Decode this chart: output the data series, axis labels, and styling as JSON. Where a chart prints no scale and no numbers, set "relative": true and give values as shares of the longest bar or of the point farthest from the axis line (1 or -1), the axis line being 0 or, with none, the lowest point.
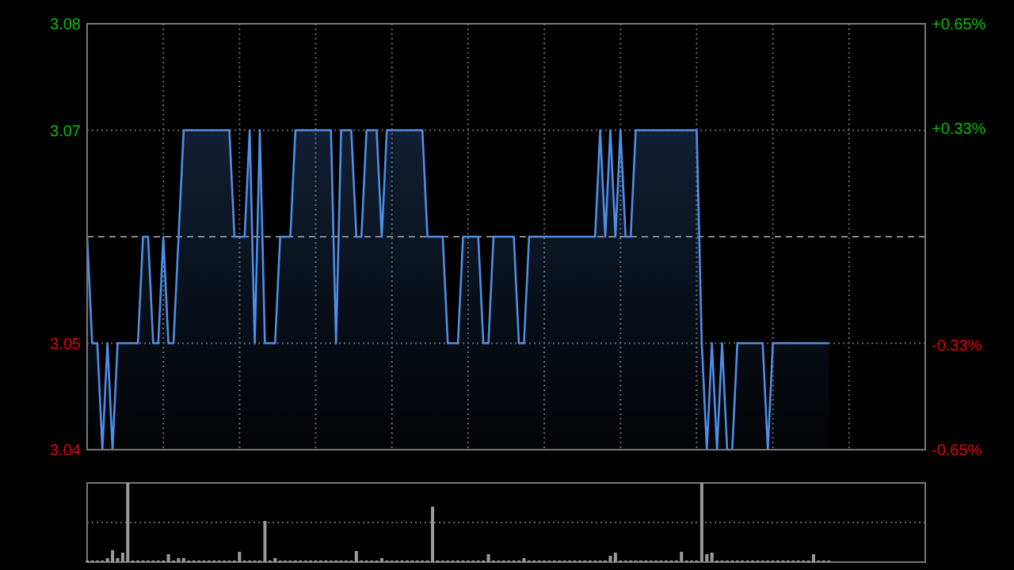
{
  "chart_data": [
    {
      "type": "area",
      "categories": [
        null,
        null,
        null,
        null,
        null,
        null,
        null,
        null,
        null,
        null,
        null,
        null,
        null,
        null,
        null,
        null,
        null,
        null,
        null,
        null,
        null,
        null,
        null,
        null,
        null,
        null,
        null,
        null,
        null,
        null,
        null,
        null,
        null,
        null,
        null,
        null,
        null,
        null,
        null,
        null,
        null,
        null,
        null,
        null,
        null,
        null,
        null,
        null,
        null,
        null,
        null,
        null,
        null,
        null,
        null,
        null,
        null,
        null,
        null,
        null,
        null,
        null,
        null,
        null,
        null,
        null,
        null,
        null,
        null,
        null,
        null,
        null,
        null,
        null,
        null,
        null,
        null,
        null,
        null,
        null,
        null,
        null,
        null,
        null,
        null,
        null,
        null,
        null,
        null,
        null,
        null,
        null,
        null,
        null,
        null,
        null,
        null,
        null,
        null,
        null,
        null,
        null,
        null,
        null,
        null,
        null,
        null,
        null,
        null,
        null,
        null,
        null,
        null,
        null,
        null,
        null,
        null,
        null,
        null,
        null,
        null,
        null,
        null,
        null,
        null,
        null,
        null,
        null,
        null,
        null,
        null,
        null,
        null,
        null,
        null,
        null,
        null,
        null,
        null,
        null,
        null,
        null,
        null,
        null,
        null,
        null,
        null
      ],
      "series": [
        {
          "color": "#4f8ee6",
          "values": [
            3.06,
            3.05,
            3.05,
            3.04,
            3.05,
            3.04,
            3.05,
            3.05,
            3.05,
            3.05,
            3.05,
            3.06,
            3.06,
            3.05,
            3.05,
            3.06,
            3.05,
            3.05,
            3.06,
            3.07,
            3.07,
            3.07,
            3.07,
            3.07,
            3.07,
            3.07,
            3.07,
            3.07,
            3.07,
            3.06,
            3.06,
            3.06,
            3.07,
            3.05,
            3.07,
            3.05,
            3.05,
            3.05,
            3.06,
            3.06,
            3.06,
            3.07,
            3.07,
            3.07,
            3.07,
            3.07,
            3.07,
            3.07,
            3.07,
            3.05,
            3.07,
            3.07,
            3.07,
            3.06,
            3.06,
            3.07,
            3.07,
            3.07,
            3.06,
            3.07,
            3.07,
            3.07,
            3.07,
            3.07,
            3.07,
            3.07,
            3.07,
            3.06,
            3.06,
            3.06,
            3.06,
            3.05,
            3.05,
            3.05,
            3.06,
            3.06,
            3.06,
            3.06,
            3.05,
            3.05,
            3.06,
            3.06,
            3.06,
            3.06,
            3.06,
            3.05,
            3.05,
            3.06,
            3.06,
            3.06,
            3.06,
            3.06,
            3.06,
            3.06,
            3.06,
            3.06,
            3.06,
            3.06,
            3.06,
            3.06,
            3.06,
            3.07,
            3.06,
            3.07,
            3.06,
            3.07,
            3.06,
            3.06,
            3.07,
            3.07,
            3.07,
            3.07,
            3.07,
            3.07,
            3.07,
            3.07,
            3.07,
            3.07,
            3.07,
            3.07,
            3.07,
            3.05,
            3.04,
            3.05,
            3.04,
            3.05,
            3.04,
            3.04,
            3.05,
            3.05,
            3.05,
            3.05,
            3.05,
            3.05,
            3.04,
            3.05,
            3.05,
            3.05,
            3.05,
            3.05,
            3.05,
            3.05,
            3.05,
            3.05,
            3.05,
            3.05,
            3.05
          ]
        }
      ],
      "ylim": [
        3.04,
        3.08
      ],
      "yticks": [
        3.04,
        3.05,
        3.07,
        3.08
      ],
      "y2lim": [
        -0.65,
        0.65
      ],
      "y2ticks": [
        {
          "value": -0.65,
          "label": "-0.65%"
        },
        {
          "value": -0.33,
          "label": "-0.33%"
        },
        {
          "value": 0.33,
          "label": "+0.33%"
        },
        {
          "value": 0.65,
          "label": "+0.65%"
        }
      ],
      "ref_lines": [
        {
          "axis": "y",
          "value": 3.06,
          "color": "#888888",
          "line_style": "dashed"
        }
      ],
      "grid": true,
      "line_style": "solid",
      "marker": "none"
    },
    {
      "type": "bar",
      "relative": true,
      "ref_lines": [
        {
          "axis": "y",
          "value": 0.5,
          "color": "#666666",
          "line_style": "dotted"
        }
      ],
      "categories": [
        null,
        null,
        null,
        null,
        null,
        null,
        null,
        null,
        null,
        null,
        null,
        null,
        null,
        null,
        null,
        null,
        null,
        null,
        null,
        null,
        null,
        null,
        null,
        null,
        null,
        null,
        null,
        null,
        null,
        null,
        null,
        null,
        null,
        null,
        null,
        null,
        null,
        null,
        null,
        null,
        null,
        null,
        null,
        null,
        null,
        null,
        null,
        null,
        null,
        null,
        null,
        null,
        null,
        null,
        null,
        null,
        null,
        null,
        null,
        null,
        null,
        null,
        null,
        null,
        null,
        null,
        null,
        null,
        null,
        null,
        null,
        null,
        null,
        null,
        null,
        null,
        null,
        null,
        null,
        null,
        null,
        null,
        null,
        null,
        null,
        null,
        null,
        null,
        null,
        null,
        null,
        null,
        null,
        null,
        null,
        null,
        null,
        null,
        null,
        null,
        null,
        null,
        null,
        null,
        null,
        null,
        null,
        null,
        null,
        null,
        null,
        null,
        null,
        null,
        null,
        null,
        null,
        null,
        null,
        null,
        null,
        null,
        null,
        null,
        null,
        null,
        null,
        null,
        null,
        null,
        null,
        null,
        null,
        null,
        null,
        null,
        null,
        null,
        null,
        null,
        null,
        null,
        null,
        null,
        null,
        null,
        null
      ],
      "color": "#9a9a9a",
      "values": [
        0.02,
        0.02,
        0.02,
        0.02,
        0.05,
        0.15,
        0.05,
        0.12,
        1,
        0.02,
        0.02,
        0.02,
        0.02,
        0.02,
        0.02,
        0.02,
        0.1,
        0.02,
        0.05,
        0.05,
        0.02,
        0.02,
        0.02,
        0.02,
        0.02,
        0.02,
        0.02,
        0.02,
        0.02,
        0.02,
        0.13,
        0.02,
        0.02,
        0.02,
        0.02,
        0.52,
        0.02,
        0.05,
        0.02,
        0.02,
        0.02,
        0.02,
        0.02,
        0.02,
        0.02,
        0.02,
        0.02,
        0.02,
        0.02,
        0.02,
        0.02,
        0.02,
        0.02,
        0.14,
        0.02,
        0.02,
        0.02,
        0.02,
        0.05,
        0.02,
        0.02,
        0.02,
        0.02,
        0.02,
        0.02,
        0.02,
        0.02,
        0.02,
        0.7,
        0.02,
        0.02,
        0.02,
        0.02,
        0.02,
        0.02,
        0.02,
        0.02,
        0.02,
        0.02,
        0.1,
        0.02,
        0.02,
        0.02,
        0.02,
        0.02,
        0.02,
        0.05,
        0.02,
        0.02,
        0.02,
        0.02,
        0.02,
        0.02,
        0.02,
        0.02,
        0.02,
        0.02,
        0.02,
        0.02,
        0.02,
        0.02,
        0.02,
        0.02,
        0.08,
        0.12,
        0.02,
        0.02,
        0.02,
        0.02,
        0.02,
        0.02,
        0.02,
        0.02,
        0.02,
        0.02,
        0.02,
        0.02,
        0.13,
        0.02,
        0.02,
        0.02,
        1,
        0.1,
        0.12,
        0.02,
        0.02,
        0.02,
        0.02,
        0.02,
        0.02,
        0.02,
        0.02,
        0.02,
        0.02,
        0.02,
        0.02,
        0.02,
        0.02,
        0.02,
        0.02,
        0.02,
        0.02,
        0.02,
        0.1,
        0.02,
        0.02,
        0.02
      ]
    }
  ]
}
